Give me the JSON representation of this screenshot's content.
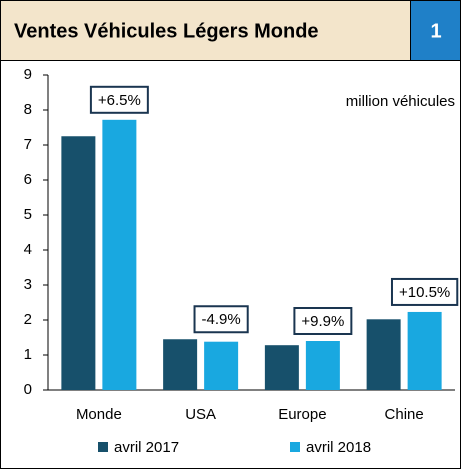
{
  "chart_data": {
    "type": "bar",
    "title": "Ventes Véhicules Légers Monde",
    "badge": "1",
    "unit_label": "million véhicules",
    "categories": [
      "Monde",
      "USA",
      "Europe",
      "Chine"
    ],
    "series": [
      {
        "name": "avril 2017",
        "color": "#17506b",
        "values": [
          7.25,
          1.45,
          1.28,
          2.02
        ]
      },
      {
        "name": "avril 2018",
        "color": "#19a8e0",
        "values": [
          7.72,
          1.38,
          1.4,
          2.23
        ]
      }
    ],
    "annotations": [
      "+6.5%",
      "-4.9%",
      "+9.9%",
      "+10.5%"
    ],
    "ylim": [
      0,
      9
    ],
    "yticks": [
      0,
      1,
      2,
      3,
      4,
      5,
      6,
      7,
      8,
      9
    ],
    "grid": false
  }
}
